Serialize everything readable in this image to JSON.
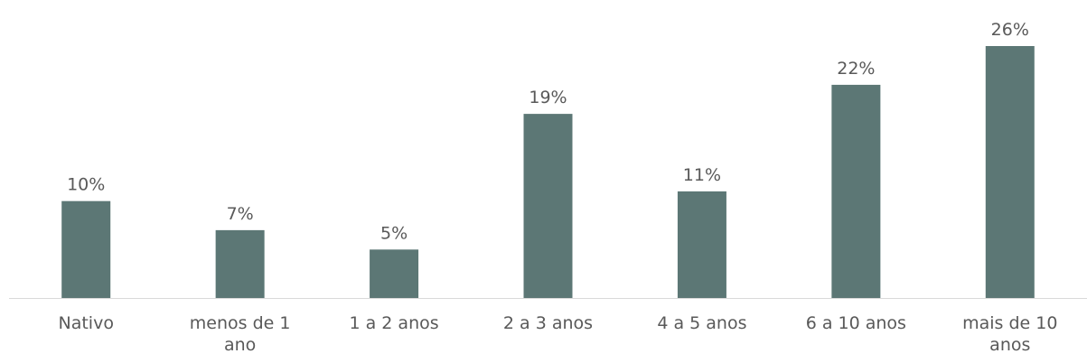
{
  "chart_data": {
    "type": "bar",
    "categories": [
      "Nativo",
      "menos de 1 ano",
      "1 a 2 anos",
      "2 a 3 anos",
      "4 a 5 anos",
      "6 a 10 anos",
      "mais de 10 anos"
    ],
    "category_lines": [
      [
        "Nativo"
      ],
      [
        "menos de 1",
        "ano"
      ],
      [
        "1 a 2 anos"
      ],
      [
        "2 a 3 anos"
      ],
      [
        "4 a 5 anos"
      ],
      [
        "6 a 10 anos"
      ],
      [
        "mais de 10",
        "anos"
      ]
    ],
    "values": [
      10,
      7,
      5,
      19,
      11,
      22,
      26
    ],
    "data_labels": [
      "10%",
      "7%",
      "5%",
      "19%",
      "11%",
      "22%",
      "26%"
    ],
    "unit": "%",
    "ylim": [
      0,
      26
    ],
    "grid": false,
    "legend": "none",
    "colors": {
      "bar": "#5c7775",
      "axis": "#d9d9d9",
      "text": "#595959"
    }
  }
}
